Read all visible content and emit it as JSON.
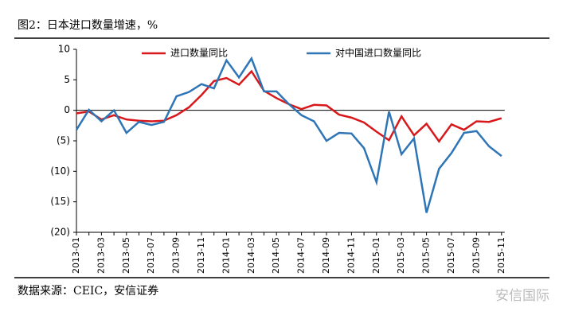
{
  "title": "图2：日本进口数量增速，%",
  "source": "数据来源：CEIC，安信证券",
  "watermark": "安信国际",
  "chart_data": {
    "type": "line",
    "categories": [
      "2013-01",
      null,
      "2013-03",
      null,
      "2013-05",
      null,
      "2013-07",
      null,
      "2013-09",
      null,
      "2013-11",
      null,
      "2014-01",
      null,
      "2014-03",
      null,
      "2014-05",
      null,
      "2014-07",
      null,
      "2014-09",
      null,
      "2014-11",
      null,
      "2015-01",
      null,
      "2015-03",
      null,
      "2015-05",
      null,
      "2015-07",
      null,
      "2015-09",
      null,
      "2015-11"
    ],
    "series": [
      {
        "name": "进口数量同比",
        "color": "#d7191c",
        "values": [
          -0.5,
          -0.2,
          -1.5,
          -0.8,
          -1.5,
          -1.7,
          -1.8,
          -1.7,
          -0.8,
          0.5,
          2.5,
          4.8,
          5.3,
          4.2,
          6.4,
          3.2,
          2.0,
          1.0,
          0.2,
          0.9,
          0.8,
          -0.7,
          -1.2,
          -2.0,
          -3.5,
          -4.9,
          -1.0,
          -4.1,
          -2.2,
          -5.1,
          -2.3,
          -3.2,
          -1.8,
          -1.9,
          -1.3
        ]
      },
      {
        "name": "对中国进口数量同比",
        "color": "#2e75b6",
        "values": [
          -3.2,
          0.1,
          -1.8,
          0,
          -3.7,
          -1.9,
          -2.4,
          -1.9,
          2.3,
          3.0,
          4.3,
          3.6,
          8.2,
          5.4,
          8.5,
          3.1,
          3.1,
          1.0,
          -0.8,
          -1.8,
          -5.0,
          -3.7,
          -3.8,
          -6.2,
          -11.8,
          -0.2,
          -7.2,
          -4.6,
          -16.8,
          -9.6,
          -7.0,
          -3.7,
          -3.4,
          -5.9,
          -7.5
        ]
      }
    ],
    "ylim": [
      -20,
      10
    ],
    "yticks": [
      10,
      5,
      0,
      {
        "value": -5,
        "label": "(5)"
      },
      {
        "value": -10,
        "label": "(10)"
      },
      {
        "value": -15,
        "label": "(15)"
      },
      {
        "value": -20,
        "label": "(20)"
      }
    ],
    "legend": "top"
  }
}
